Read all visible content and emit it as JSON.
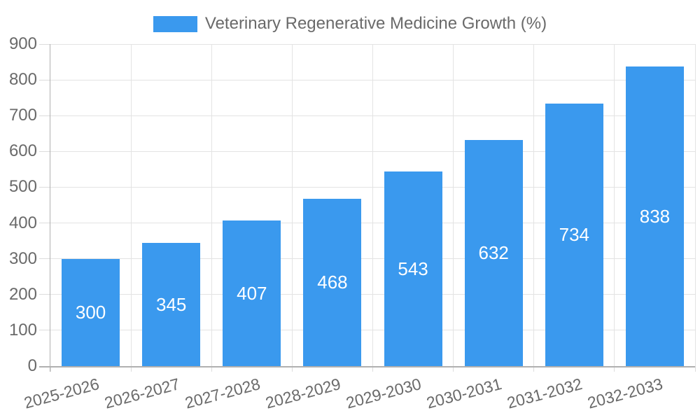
{
  "chart_data": {
    "type": "bar",
    "series_name": "Veterinary Regenerative Medicine Growth (%)",
    "categories": [
      "2025-2026",
      "2026-2027",
      "2027-2028",
      "2028-2029",
      "2029-2030",
      "2030-2031",
      "2031-2032",
      "2032-2033"
    ],
    "values": [
      300,
      345,
      407,
      468,
      543,
      632,
      734,
      838
    ],
    "ylim": [
      0,
      900
    ],
    "ytick_step": 100,
    "ytick_labels": [
      "0",
      "100",
      "200",
      "300",
      "400",
      "500",
      "600",
      "700",
      "800",
      "900"
    ],
    "xlabel": "",
    "ylabel": "",
    "grid": true,
    "legend_position": "top",
    "bar_value_labels_visible": true,
    "colors": {
      "bar": "#3A99EE",
      "grid": "#E3E3E3",
      "axis": "#B0B0B0",
      "tick": "#DCDCDC",
      "text": "#6A6A6A",
      "value_label": "#FFFFFF",
      "background": "#FFFFFF"
    }
  }
}
